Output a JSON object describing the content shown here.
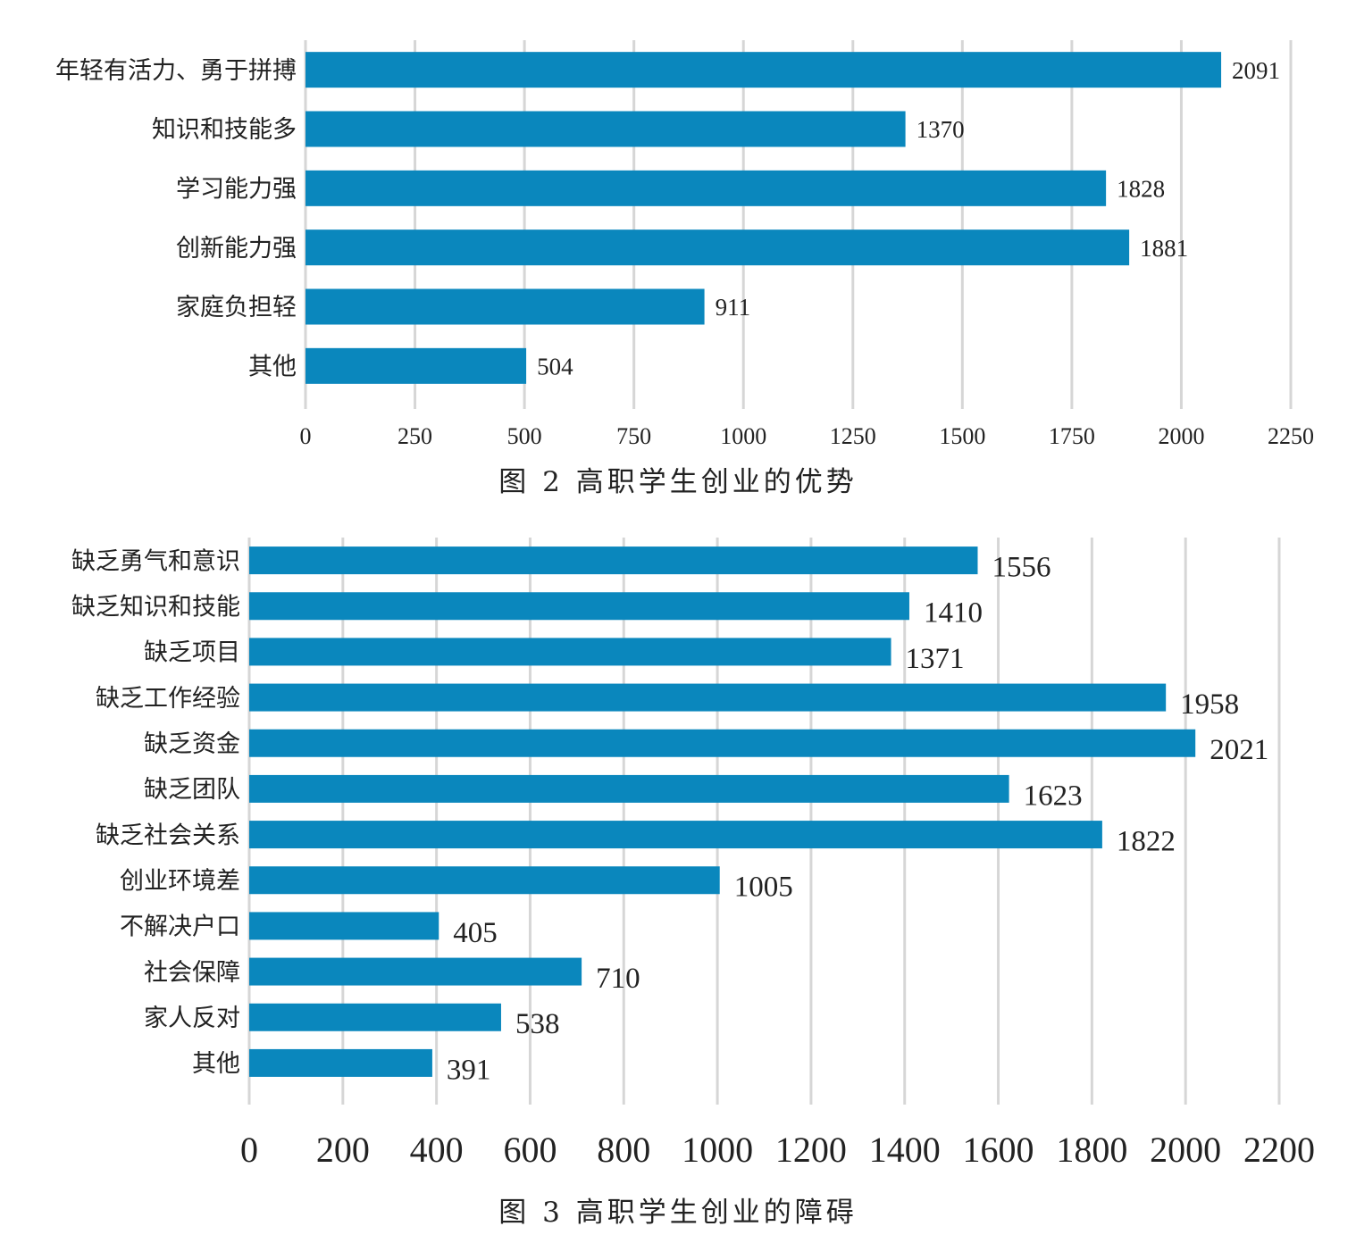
{
  "bar_color": "#0a87bd",
  "grid_color": "#d6d6d6",
  "chart_data": [
    {
      "type": "bar",
      "orientation": "horizontal",
      "title": "图 2 高职学生创业的优势",
      "categories": [
        "年轻有活力、勇于拼搏",
        "知识和技能多",
        "学习能力强",
        "创新能力强",
        "家庭负担轻",
        "其他"
      ],
      "values": [
        2091,
        1370,
        1828,
        1881,
        911,
        504
      ],
      "xlim": [
        0,
        2250
      ],
      "xticks": [
        "0",
        "250",
        "500",
        "750",
        "1000",
        "1250",
        "1500",
        "1750",
        "2000",
        "2250"
      ],
      "xlabel": "",
      "ylabel": "",
      "grid": true,
      "legend": "none"
    },
    {
      "type": "bar",
      "orientation": "horizontal",
      "title": "图 3 高职学生创业的障碍",
      "categories": [
        "缺乏勇气和意识",
        "缺乏知识和技能",
        "缺乏项目",
        "缺乏工作经验",
        "缺乏资金",
        "缺乏团队",
        "缺乏社会关系",
        "创业环境差",
        "不解决户口",
        "社会保障",
        "家人反对",
        "其他"
      ],
      "values": [
        1556,
        1410,
        1371,
        1958,
        2021,
        1623,
        1822,
        1005,
        405,
        710,
        538,
        391
      ],
      "xlim": [
        0,
        2200
      ],
      "xticks": [
        "0",
        "200",
        "400",
        "600",
        "800",
        "1000",
        "1200",
        "1400",
        "1600",
        "1800",
        "2000",
        "2200"
      ],
      "xlabel": "",
      "ylabel": "",
      "grid": true,
      "legend": "none"
    }
  ]
}
